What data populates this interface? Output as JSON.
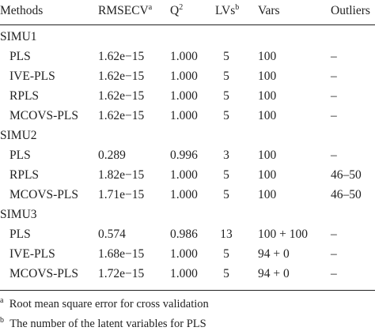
{
  "table": {
    "columns": [
      {
        "label": "Methods"
      },
      {
        "label": "RMSECV",
        "sup": "a"
      },
      {
        "label": "Q",
        "sup": "2"
      },
      {
        "label": "LVs",
        "sup": "b"
      },
      {
        "label": "Vars"
      },
      {
        "label": "Outliers"
      }
    ],
    "groups": [
      {
        "name": "SIMU1",
        "rows": [
          [
            "PLS",
            "1.62e−15",
            "1.000",
            "5",
            "100",
            "–"
          ],
          [
            "IVE-PLS",
            "1.62e−15",
            "1.000",
            "5",
            "100",
            "–"
          ],
          [
            "RPLS",
            "1.62e−15",
            "1.000",
            "5",
            "100",
            "–"
          ],
          [
            "MCOVS-PLS",
            "1.62e−15",
            "1.000",
            "5",
            "100",
            "–"
          ]
        ]
      },
      {
        "name": "SIMU2",
        "rows": [
          [
            "PLS",
            "0.289",
            "0.996",
            "3",
            "100",
            "–"
          ],
          [
            "RPLS",
            "1.82e−15",
            "1.000",
            "5",
            "100",
            "46–50"
          ],
          [
            "MCOVS-PLS",
            "1.71e−15",
            "1.000",
            "5",
            "100",
            "46–50"
          ]
        ]
      },
      {
        "name": "SIMU3",
        "rows": [
          [
            "PLS",
            "0.574",
            "0.986",
            "13",
            "100 + 100",
            "–"
          ],
          [
            "IVE-PLS",
            "1.68e−15",
            "1.000",
            "5",
            "94 + 0",
            "–"
          ],
          [
            "MCOVS-PLS",
            "1.72e−15",
            "1.000",
            "5",
            "94 + 0",
            "–"
          ]
        ]
      }
    ]
  },
  "footnotes": [
    {
      "mark": "a",
      "text": "Root mean square error for cross validation"
    },
    {
      "mark": "b",
      "text": "The number of the latent variables for PLS"
    }
  ]
}
